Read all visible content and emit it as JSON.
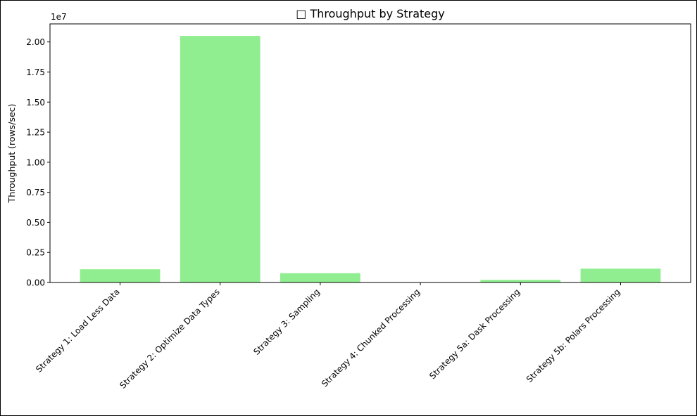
{
  "chart_data": {
    "type": "bar",
    "title": "□ Throughput by Strategy",
    "xlabel": "",
    "ylabel": "Throughput (rows/sec)",
    "offset_text": "1e7",
    "categories": [
      "Strategy 1: Load Less Data",
      "Strategy 2: Optimize Data Types",
      "Strategy 3: Sampling",
      "Strategy 4: Chunked Processing",
      "Strategy 5a: Dask Processing",
      "Strategy 5b: Polars Processing"
    ],
    "values": [
      1100000,
      20500000,
      770000,
      5000,
      220000,
      1150000
    ],
    "ylim": [
      0,
      21500000
    ],
    "y_ticks": [
      0,
      2500000,
      5000000,
      7500000,
      10000000,
      12500000,
      15000000,
      17500000,
      20000000
    ],
    "y_tick_labels": [
      "0.00",
      "0.25",
      "0.50",
      "0.75",
      "1.00",
      "1.25",
      "1.50",
      "1.75",
      "2.00"
    ],
    "bar_color": "#90ee90",
    "grid": false,
    "legend": "none"
  }
}
